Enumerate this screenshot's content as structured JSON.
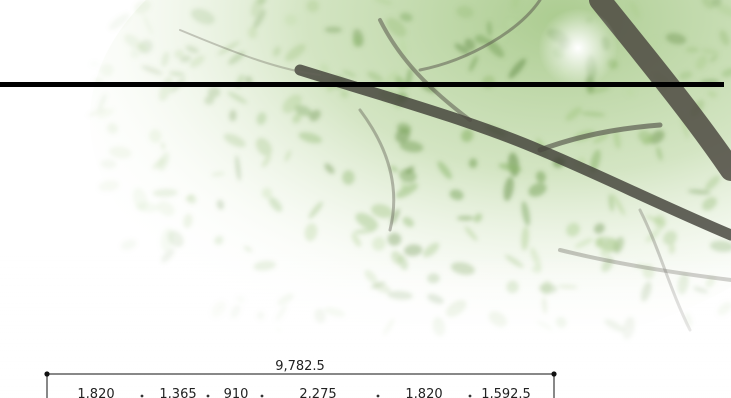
{
  "colors": {
    "background": "#ffffff",
    "foliage_light": "#cfe3b6",
    "foliage_mid": "#9fc37e",
    "foliage_dark": "#6f9a55",
    "branch": "#3a3a34",
    "rule_line": "#000000",
    "dimension_line": "#111111"
  },
  "dimensions": {
    "total": "9,782.5",
    "segments": [
      "1,820",
      "1,365",
      "910",
      "2,275",
      "1,820",
      "1,592.5"
    ]
  }
}
